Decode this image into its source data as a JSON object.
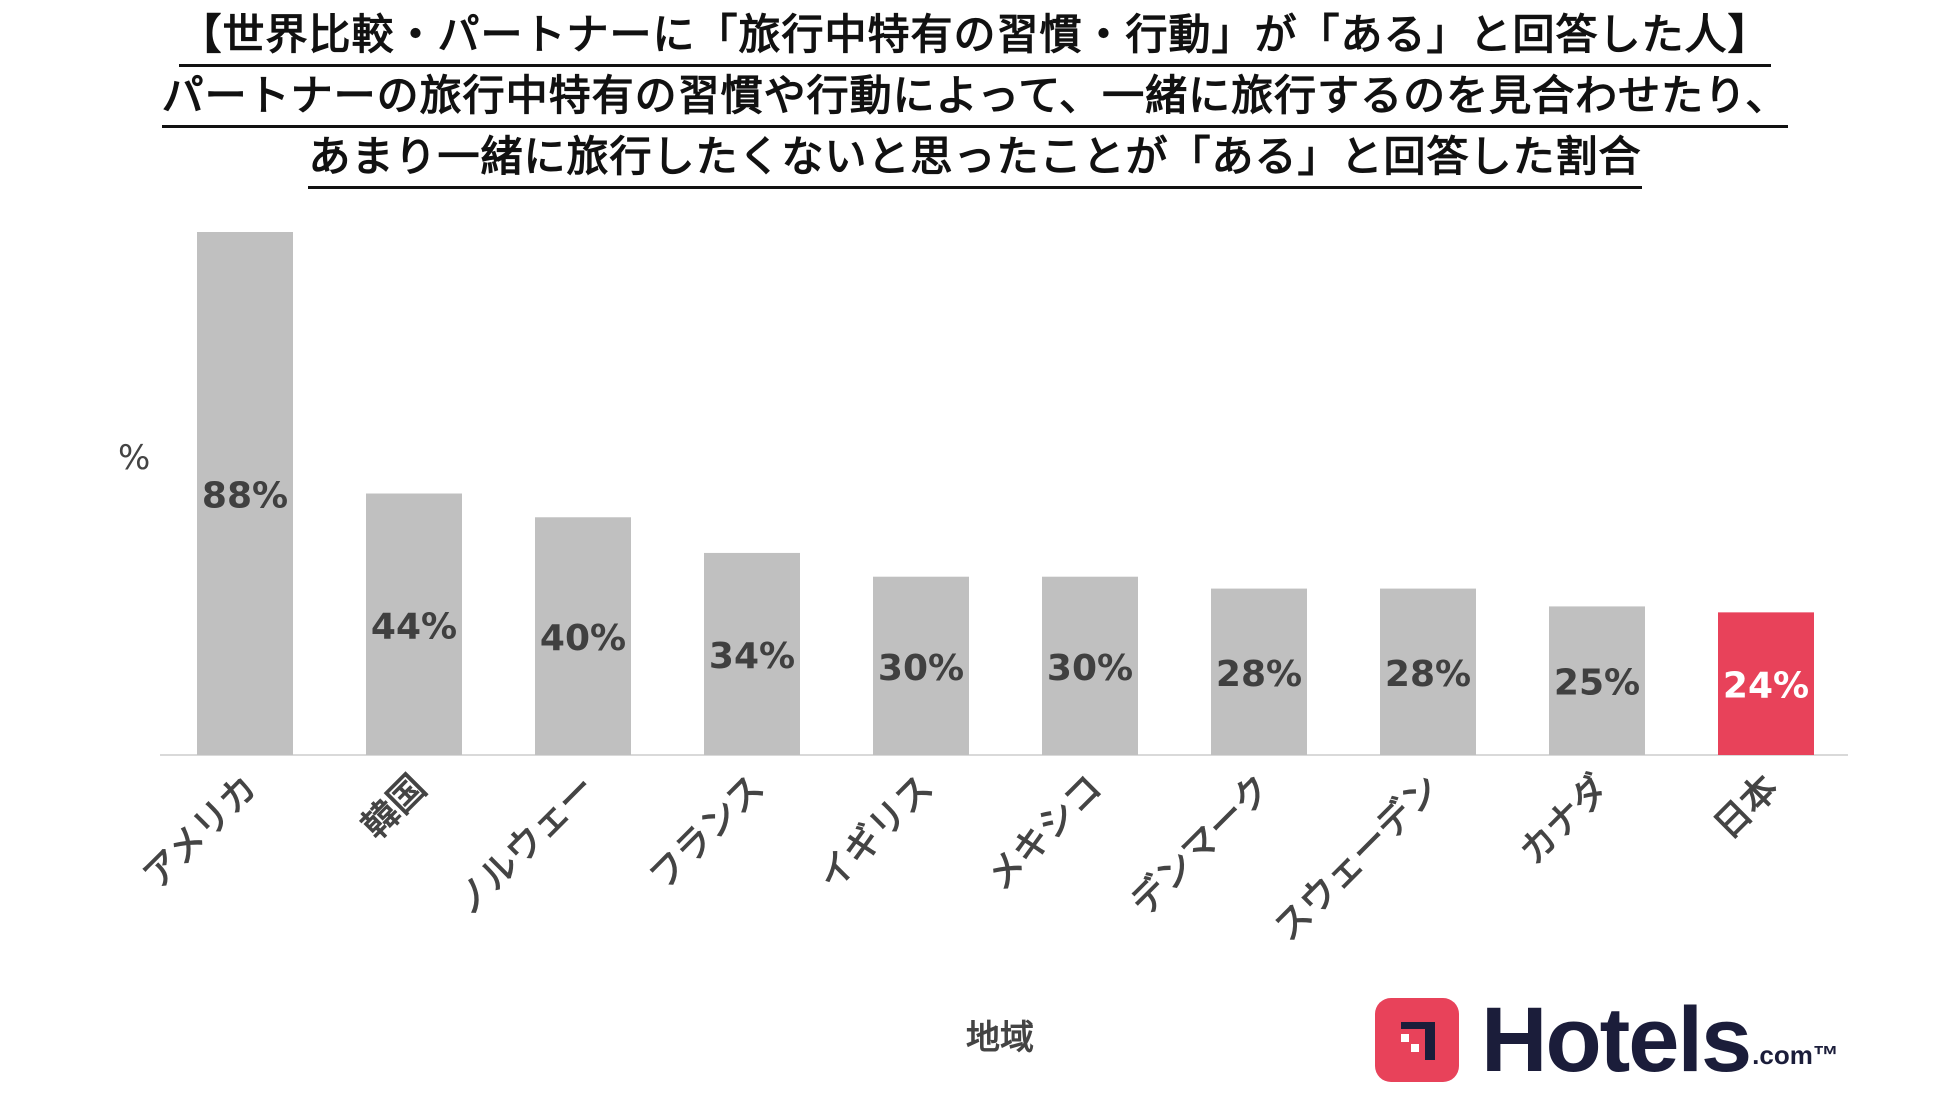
{
  "title_lines": [
    "【世界比較・パートナーに「旅行中特有の習慣・行動」が「ある」と回答した人】",
    "パートナーの旅行中特有の習慣や行動によって、一緒に旅行するのを見合わせたり、",
    "あまり一緒に旅行したくないと思ったことが「ある」と回答した割合"
  ],
  "logo": {
    "text": "Hotels",
    "suffix": ".com™"
  },
  "chart_data": {
    "type": "bar",
    "title": "",
    "xlabel": "地域",
    "ylabel": "%",
    "ylim": [
      0,
      88
    ],
    "grid": false,
    "legend": "none",
    "categories": [
      "アメリカ",
      "韓国",
      "ノルウェー",
      "フランス",
      "イギリス",
      "メキシコ",
      "デンマーク",
      "スウェーデン",
      "カナダ",
      "日本"
    ],
    "values": [
      88,
      44,
      40,
      34,
      30,
      30,
      28,
      28,
      25,
      24
    ],
    "value_labels": [
      "88%",
      "44%",
      "40%",
      "34%",
      "30%",
      "30%",
      "28%",
      "28%",
      "25%",
      "24%"
    ],
    "bar_color": "#c0c0c0",
    "highlight_color": "#e8425a",
    "highlight_category": "日本"
  }
}
